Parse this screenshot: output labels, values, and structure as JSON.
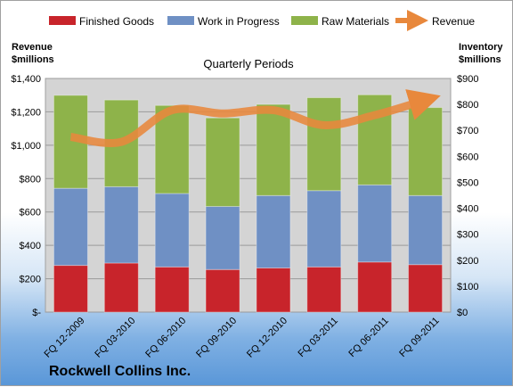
{
  "chart_data": {
    "type": "bar",
    "stacked": true,
    "categories": [
      "FQ 12-2009",
      "FQ 03-2010",
      "FQ 06-2010",
      "FQ 09-2010",
      "FQ 12-2010",
      "FQ 03-2011",
      "FQ 06-2011",
      "FQ 09-2011"
    ],
    "series": [
      {
        "name": "Finished Goods",
        "axis": "right",
        "color": "#c8242b",
        "values": [
          180,
          189,
          174,
          164,
          170,
          174,
          193,
          183
        ]
      },
      {
        "name": "Work in Progress",
        "axis": "right",
        "color": "#6f90c4",
        "values": [
          297,
          294,
          283,
          243,
          279,
          294,
          297,
          266
        ]
      },
      {
        "name": "Raw Materials",
        "axis": "right",
        "color": "#8eb34a",
        "values": [
          358,
          334,
          339,
          341,
          351,
          358,
          347,
          339
        ]
      },
      {
        "name": "Revenue",
        "axis": "left",
        "type": "line",
        "color": "#e8883c",
        "values": [
          1050,
          1020,
          1210,
          1190,
          1210,
          1120,
          1180,
          1270
        ]
      }
    ],
    "subtitle": "Quarterly Periods",
    "left_axis": {
      "title_line1": "Revenue",
      "title_line2": "$millions",
      "ylim": [
        0,
        1400
      ],
      "ticks": [
        "$-",
        "$200",
        "$400",
        "$600",
        "$800",
        "$1,000",
        "$1,200",
        "$1,400"
      ]
    },
    "right_axis": {
      "title_line1": "Inventory",
      "title_line2": "$millions",
      "ylim": [
        0,
        900
      ],
      "ticks": [
        "$0",
        "$100",
        "$200",
        "$300",
        "$400",
        "$500",
        "$600",
        "$700",
        "$800",
        "$900"
      ]
    },
    "legend_position": "top",
    "grid": true
  },
  "company_name": "Rockwell Collins Inc."
}
